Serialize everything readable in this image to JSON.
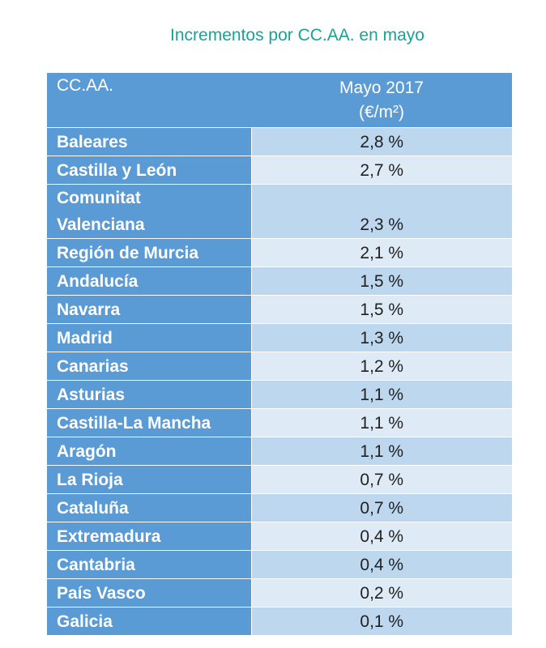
{
  "title": "Incrementos por CC.AA. en mayo",
  "table": {
    "header": {
      "region": "CC.AA.",
      "value": "Mayo 2017",
      "unit": "(€/m²)"
    },
    "rows": [
      {
        "name": "Baleares",
        "value": "2,8 %"
      },
      {
        "name": "Castilla y León",
        "value": "2,7 %"
      },
      {
        "name": "Comunitat\nValenciana",
        "value": "2,3 %"
      },
      {
        "name": "Región de Murcia",
        "value": "2,1 %"
      },
      {
        "name": "Andalucía",
        "value": "1,5 %"
      },
      {
        "name": "Navarra",
        "value": "1,5 %"
      },
      {
        "name": "Madrid",
        "value": "1,3 %"
      },
      {
        "name": "Canarias",
        "value": "1,2 %"
      },
      {
        "name": "Asturias",
        "value": "1,1 %"
      },
      {
        "name": "Castilla-La Mancha",
        "value": "1,1 %"
      },
      {
        "name": "Aragón",
        "value": "1,1 %"
      },
      {
        "name": "La Rioja",
        "value": "0,7 %"
      },
      {
        "name": "Cataluña",
        "value": "0,7 %"
      },
      {
        "name": "Extremadura",
        "value": "0,4 %"
      },
      {
        "name": "Cantabria",
        "value": "0,4 %"
      },
      {
        "name": "País Vasco",
        "value": "0,2 %"
      },
      {
        "name": "Galicia",
        "value": "0,1 %"
      }
    ]
  }
}
